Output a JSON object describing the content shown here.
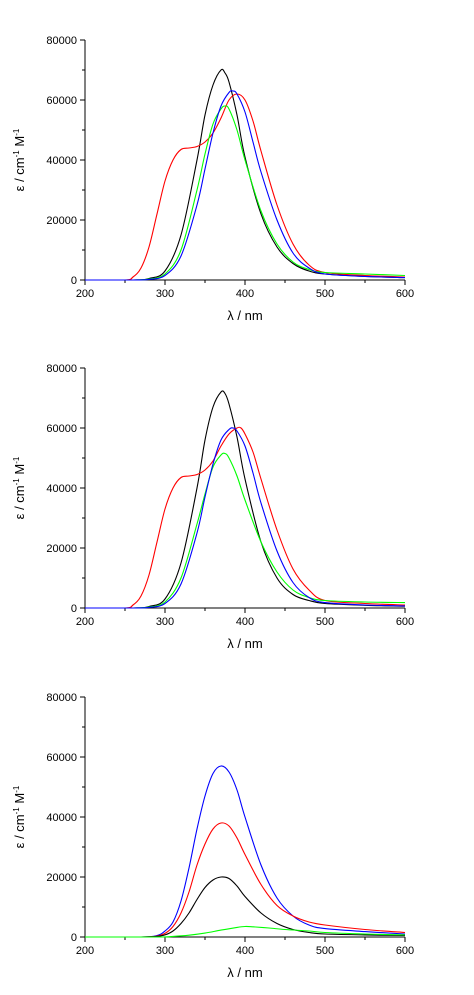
{
  "chart_data": [
    {
      "type": "line",
      "xlabel": "λ / nm",
      "ylabel": "ε / cm",
      "ylabel_sup1": "-1",
      "ylabel_mid": " M",
      "ylabel_sup2": "-1",
      "xlim": [
        200,
        600
      ],
      "ylim": [
        0,
        80000
      ],
      "xticks": [
        "200",
        "300",
        "400",
        "500",
        "600"
      ],
      "yticks": [
        "0",
        "20000",
        "40000",
        "60000",
        "80000"
      ],
      "grid": false,
      "series": [
        {
          "color": "#000000",
          "x": [
            200,
            260,
            280,
            300,
            320,
            340,
            350,
            360,
            370,
            375,
            380,
            390,
            400,
            420,
            440,
            460,
            480,
            500,
            550,
            600
          ],
          "y": [
            0,
            0,
            500,
            3000,
            15000,
            40000,
            55000,
            65000,
            70000,
            69000,
            66000,
            55000,
            41000,
            22000,
            11000,
            5500,
            3000,
            2000,
            1200,
            800
          ]
        },
        {
          "color": "#ff0000",
          "x": [
            200,
            250,
            260,
            270,
            280,
            290,
            300,
            310,
            320,
            330,
            340,
            350,
            360,
            370,
            380,
            390,
            400,
            410,
            420,
            440,
            460,
            480,
            500,
            550,
            600
          ],
          "y": [
            0,
            0,
            1000,
            4000,
            11000,
            22000,
            33000,
            40000,
            43500,
            44000,
            44500,
            46000,
            49000,
            54000,
            60000,
            62000,
            60000,
            53000,
            43000,
            25000,
            12000,
            5000,
            2500,
            1500,
            1000
          ]
        },
        {
          "color": "#00ff00",
          "x": [
            200,
            260,
            280,
            300,
            320,
            340,
            350,
            360,
            370,
            375,
            380,
            390,
            400,
            420,
            440,
            460,
            480,
            500,
            550,
            600
          ],
          "y": [
            0,
            0,
            300,
            2000,
            10000,
            30000,
            42000,
            52000,
            57000,
            58000,
            57000,
            50000,
            40000,
            23000,
            12000,
            6000,
            3500,
            2500,
            2000,
            1500
          ]
        },
        {
          "color": "#0000ff",
          "x": [
            200,
            260,
            280,
            300,
            320,
            340,
            350,
            360,
            370,
            380,
            385,
            390,
            400,
            410,
            420,
            440,
            460,
            480,
            500,
            550,
            600
          ],
          "y": [
            0,
            0,
            200,
            1500,
            8000,
            25000,
            37000,
            49000,
            58000,
            62500,
            63000,
            62000,
            56000,
            46000,
            36000,
            20000,
            9000,
            4000,
            2000,
            1200,
            800
          ]
        }
      ]
    },
    {
      "type": "line",
      "xlabel": "λ / nm",
      "ylabel": "ε / cm",
      "ylabel_sup1": "-1",
      "ylabel_mid": " M",
      "ylabel_sup2": "-1",
      "xlim": [
        200,
        600
      ],
      "ylim": [
        0,
        80000
      ],
      "xticks": [
        "200",
        "300",
        "400",
        "500",
        "600"
      ],
      "yticks": [
        "0",
        "20000",
        "40000",
        "60000",
        "80000"
      ],
      "grid": false,
      "series": [
        {
          "color": "#000000",
          "x": [
            200,
            260,
            280,
            300,
            320,
            340,
            350,
            360,
            370,
            375,
            380,
            390,
            400,
            420,
            440,
            460,
            480,
            500,
            550,
            600
          ],
          "y": [
            0,
            0,
            500,
            3000,
            15000,
            40000,
            56000,
            67000,
            72000,
            71500,
            68000,
            57000,
            43000,
            22000,
            10000,
            4500,
            2500,
            1500,
            900,
            600
          ]
        },
        {
          "color": "#ff0000",
          "x": [
            200,
            250,
            260,
            270,
            280,
            290,
            300,
            310,
            320,
            330,
            340,
            350,
            360,
            370,
            380,
            390,
            395,
            400,
            410,
            420,
            440,
            460,
            480,
            500,
            550,
            600
          ],
          "y": [
            0,
            0,
            1000,
            4000,
            11000,
            22000,
            33000,
            40000,
            43500,
            44000,
            44500,
            46000,
            49000,
            54000,
            58000,
            60000,
            60000,
            58000,
            52000,
            43000,
            26000,
            13000,
            6000,
            2500,
            1500,
            1000
          ]
        },
        {
          "color": "#00ff00",
          "x": [
            200,
            260,
            280,
            300,
            320,
            340,
            350,
            360,
            370,
            375,
            380,
            390,
            400,
            420,
            440,
            460,
            480,
            500,
            550,
            600
          ],
          "y": [
            0,
            0,
            300,
            2000,
            10000,
            28000,
            38000,
            47000,
            51000,
            51500,
            50000,
            44000,
            36000,
            22000,
            12000,
            6000,
            3500,
            2500,
            2000,
            1800
          ]
        },
        {
          "color": "#0000ff",
          "x": [
            200,
            260,
            280,
            300,
            320,
            340,
            350,
            360,
            370,
            380,
            385,
            390,
            400,
            410,
            420,
            440,
            460,
            480,
            500,
            550,
            600
          ],
          "y": [
            0,
            0,
            200,
            1500,
            8000,
            25000,
            37000,
            48000,
            56000,
            59500,
            60000,
            59000,
            54000,
            45000,
            35000,
            19000,
            8500,
            3500,
            1800,
            1000,
            700
          ]
        }
      ]
    },
    {
      "type": "line",
      "xlabel": "λ / nm",
      "ylabel": "ε / cm",
      "ylabel_sup1": "-1",
      "ylabel_mid": " M",
      "ylabel_sup2": "-1",
      "xlim": [
        200,
        600
      ],
      "ylim": [
        0,
        80000
      ],
      "xticks": [
        "200",
        "300",
        "400",
        "500",
        "600"
      ],
      "yticks": [
        "0",
        "20000",
        "40000",
        "60000",
        "80000"
      ],
      "grid": false,
      "series": [
        {
          "color": "#0000ff",
          "x": [
            200,
            270,
            290,
            300,
            310,
            320,
            330,
            340,
            350,
            360,
            370,
            380,
            390,
            400,
            420,
            440,
            460,
            480,
            500,
            550,
            600
          ],
          "y": [
            0,
            0,
            500,
            2000,
            5000,
            12000,
            23000,
            36000,
            47000,
            54500,
            57000,
            55000,
            49000,
            40000,
            24000,
            13000,
            7000,
            4000,
            2800,
            1800,
            1000
          ]
        },
        {
          "color": "#ff0000",
          "x": [
            200,
            270,
            290,
            300,
            310,
            320,
            330,
            340,
            350,
            360,
            370,
            380,
            390,
            400,
            420,
            440,
            460,
            480,
            500,
            550,
            600
          ],
          "y": [
            0,
            0,
            300,
            1200,
            3500,
            8000,
            15000,
            24000,
            31000,
            36000,
            38000,
            37000,
            33000,
            27500,
            17500,
            10500,
            7000,
            5000,
            4000,
            2500,
            1500
          ]
        },
        {
          "color": "#000000",
          "x": [
            200,
            270,
            290,
            300,
            310,
            320,
            330,
            340,
            350,
            360,
            370,
            380,
            390,
            400,
            420,
            440,
            460,
            480,
            500,
            550,
            600
          ],
          "y": [
            0,
            0,
            200,
            700,
            2000,
            4500,
            8000,
            12500,
            16500,
            19000,
            20000,
            19500,
            17000,
            13500,
            8000,
            4500,
            2500,
            1500,
            1000,
            700,
            500
          ]
        },
        {
          "color": "#00ff00",
          "x": [
            200,
            290,
            310,
            330,
            350,
            370,
            390,
            400,
            410,
            430,
            450,
            480,
            500,
            550,
            600
          ],
          "y": [
            0,
            0,
            200,
            600,
            1300,
            2300,
            3200,
            3500,
            3400,
            3000,
            2500,
            2000,
            1500,
            1000,
            700
          ]
        }
      ]
    }
  ]
}
